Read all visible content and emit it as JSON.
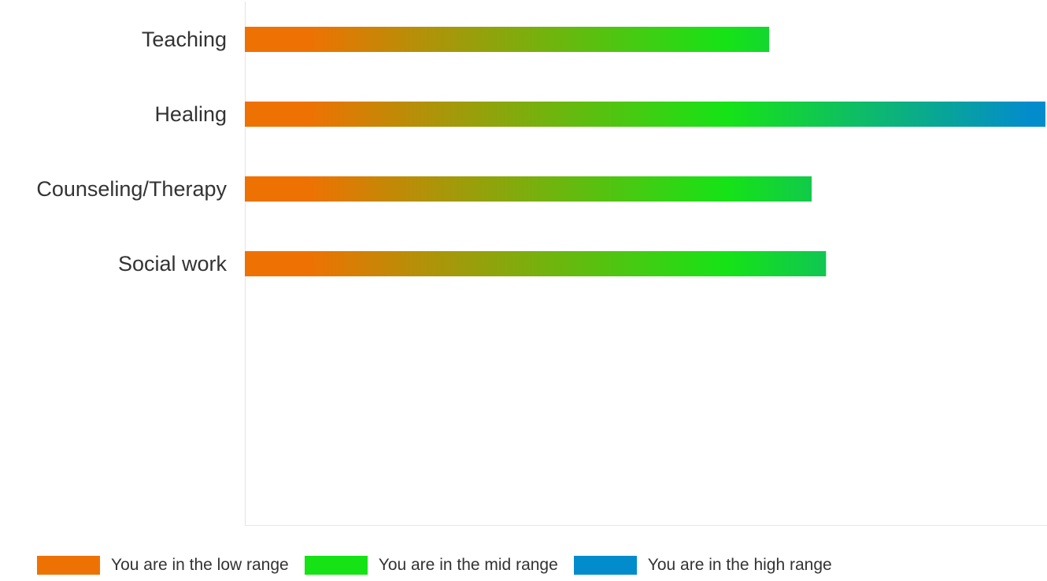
{
  "chart_data": {
    "type": "bar",
    "orientation": "horizontal",
    "categories": [
      "Teaching",
      "Healing",
      "Counseling/Therapy",
      "Social work"
    ],
    "values": [
      65.5,
      100,
      70.8,
      72.6
    ],
    "xlim": [
      0,
      100
    ],
    "grid": false,
    "legend_position": "bottom",
    "legend": [
      {
        "label": "You are in the low range",
        "color": "#ee7203"
      },
      {
        "label": "You are in the mid range",
        "color": "#16e316"
      },
      {
        "label": "You are in the high range",
        "color": "#038ccc"
      }
    ],
    "gradient_colors": [
      "#ee7203",
      "#16e316",
      "#038ccc"
    ]
  }
}
